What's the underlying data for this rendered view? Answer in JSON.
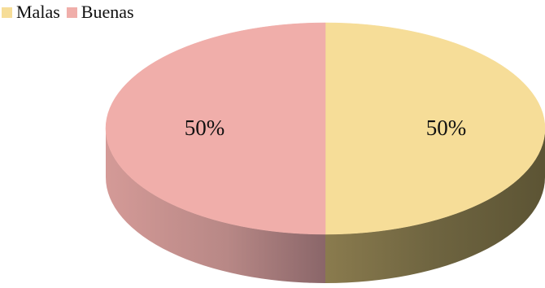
{
  "chart_data": {
    "type": "pie",
    "three_d": true,
    "legend_position": "top-left",
    "categories": [
      "Malas",
      "Buenas"
    ],
    "values": [
      50,
      50
    ],
    "labels": [
      "50%",
      "50%"
    ],
    "colors": {
      "Malas": "#f6dd98",
      "Buenas": "#f0aeaa"
    }
  }
}
